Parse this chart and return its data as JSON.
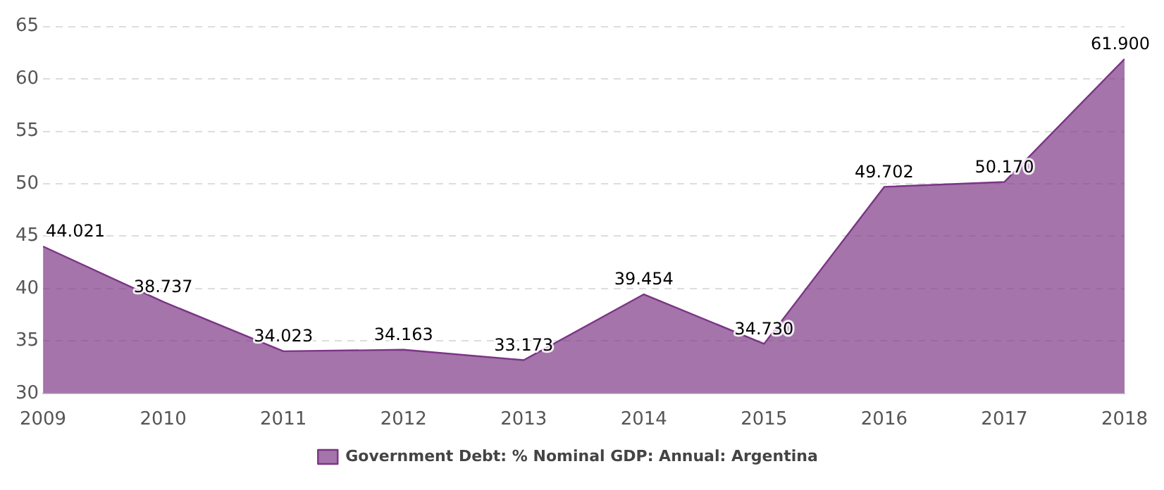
{
  "chart_data": {
    "type": "area",
    "x": [
      2009,
      2010,
      2011,
      2012,
      2013,
      2014,
      2015,
      2016,
      2017,
      2018
    ],
    "series": [
      {
        "name": "Government Debt: % Nominal GDP: Annual: Argentina",
        "color": "#7b3585",
        "values": [
          44.021,
          38.737,
          34.023,
          34.163,
          33.173,
          39.454,
          34.73,
          49.702,
          50.17,
          61.9
        ]
      }
    ],
    "value_labels": [
      "44.021",
      "38.737",
      "34.023",
      "34.163",
      "33.173",
      "39.454",
      "34.730",
      "49.702",
      "50.170",
      "61.900"
    ],
    "xlim": [
      2009,
      2018
    ],
    "xticks": [
      2009,
      2010,
      2011,
      2012,
      2013,
      2014,
      2015,
      2016,
      2017,
      2018
    ],
    "ylim": [
      30,
      65
    ],
    "yticks": [
      30,
      35,
      40,
      45,
      50,
      55,
      60,
      65
    ],
    "grid": "y",
    "legend": "bottom"
  }
}
